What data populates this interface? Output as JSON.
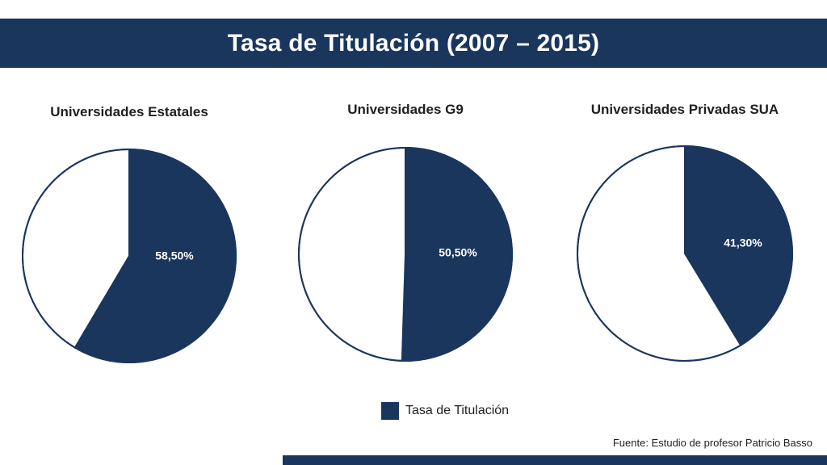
{
  "header": {
    "title": "Tasa de Titulación (2007 – 2015)"
  },
  "colors": {
    "accent": "#1b365d",
    "remainder": "#ffffff"
  },
  "chart_data": [
    {
      "type": "pie",
      "title": "Universidades Estatales",
      "slices": [
        {
          "name": "Tasa de Titulación",
          "value": 58.5,
          "label": "58,50%"
        },
        {
          "name": "",
          "value": 41.5,
          "label": ""
        }
      ]
    },
    {
      "type": "pie",
      "title": "Universidades G9",
      "slices": [
        {
          "name": "Tasa de Titulación",
          "value": 50.5,
          "label": "50,50%"
        },
        {
          "name": "",
          "value": 49.5,
          "label": ""
        }
      ]
    },
    {
      "type": "pie",
      "title": "Universidades Privadas SUA",
      "slices": [
        {
          "name": "Tasa de Titulación",
          "value": 41.3,
          "label": "41,30%"
        },
        {
          "name": "",
          "value": 58.7,
          "label": ""
        }
      ]
    }
  ],
  "legend": {
    "label": "Tasa de Titulación",
    "position": "bottom-center"
  },
  "footer": {
    "source": "Fuente: Estudio de profesor Patricio Basso"
  }
}
